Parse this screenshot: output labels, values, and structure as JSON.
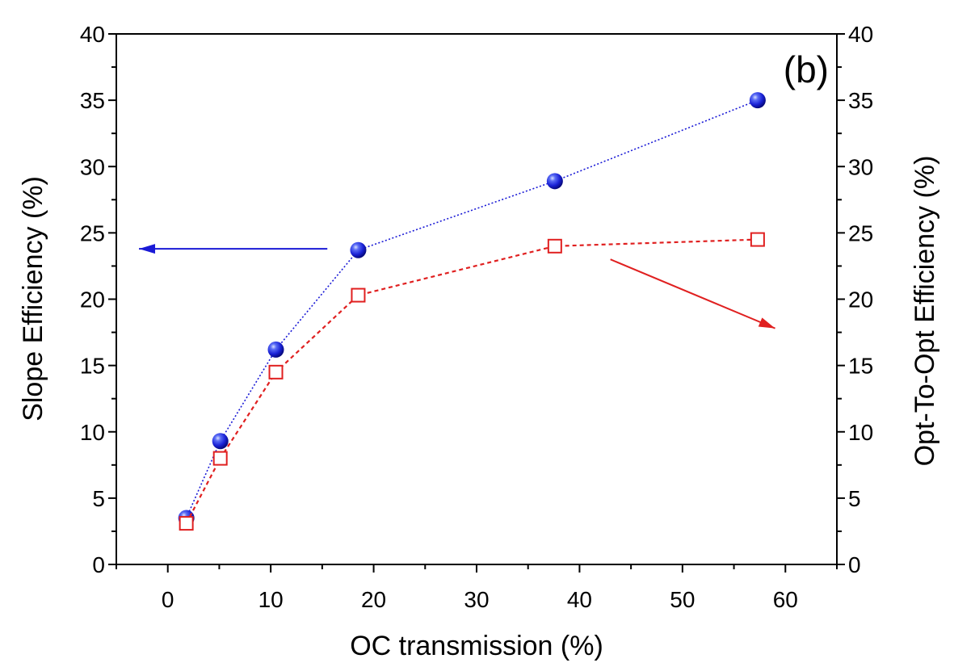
{
  "panel_label": "(b)",
  "chart_data": {
    "type": "line",
    "xlabel": "OC transmission (%)",
    "ylabel_left": "Slope Efficiency (%)",
    "ylabel_right": "Opt-To-Opt Efficiency (%)",
    "xlim": [
      -5,
      65
    ],
    "ylim": [
      0,
      40
    ],
    "x_ticks": [
      0,
      10,
      20,
      30,
      40,
      50,
      60
    ],
    "y_ticks": [
      0,
      5,
      10,
      15,
      20,
      25,
      30,
      35,
      40
    ],
    "grid": false,
    "series": [
      {
        "axis": "left",
        "marker": "filled-sphere",
        "line": "dotted",
        "color": "#1a1ad6",
        "x": [
          1.8,
          5.1,
          10.5,
          18.5,
          37.6,
          57.3
        ],
        "y": [
          3.5,
          9.3,
          16.2,
          23.7,
          28.9,
          35.0
        ]
      },
      {
        "axis": "right",
        "marker": "open-square",
        "line": "dashed",
        "color": "#e02020",
        "x": [
          1.8,
          5.1,
          10.5,
          18.5,
          37.6,
          57.3
        ],
        "y": [
          3.1,
          8.0,
          14.5,
          20.3,
          24.0,
          24.5
        ]
      }
    ],
    "annotations": [
      {
        "type": "arrow",
        "color": "#1a1ad6",
        "from": [
          15.5,
          23.8
        ],
        "to": [
          -2.8,
          23.8
        ],
        "points_to": "left axis"
      },
      {
        "type": "arrow",
        "color": "#e02020",
        "from": [
          43,
          23.0
        ],
        "to": [
          59,
          17.8
        ],
        "points_to": "right axis"
      }
    ]
  }
}
